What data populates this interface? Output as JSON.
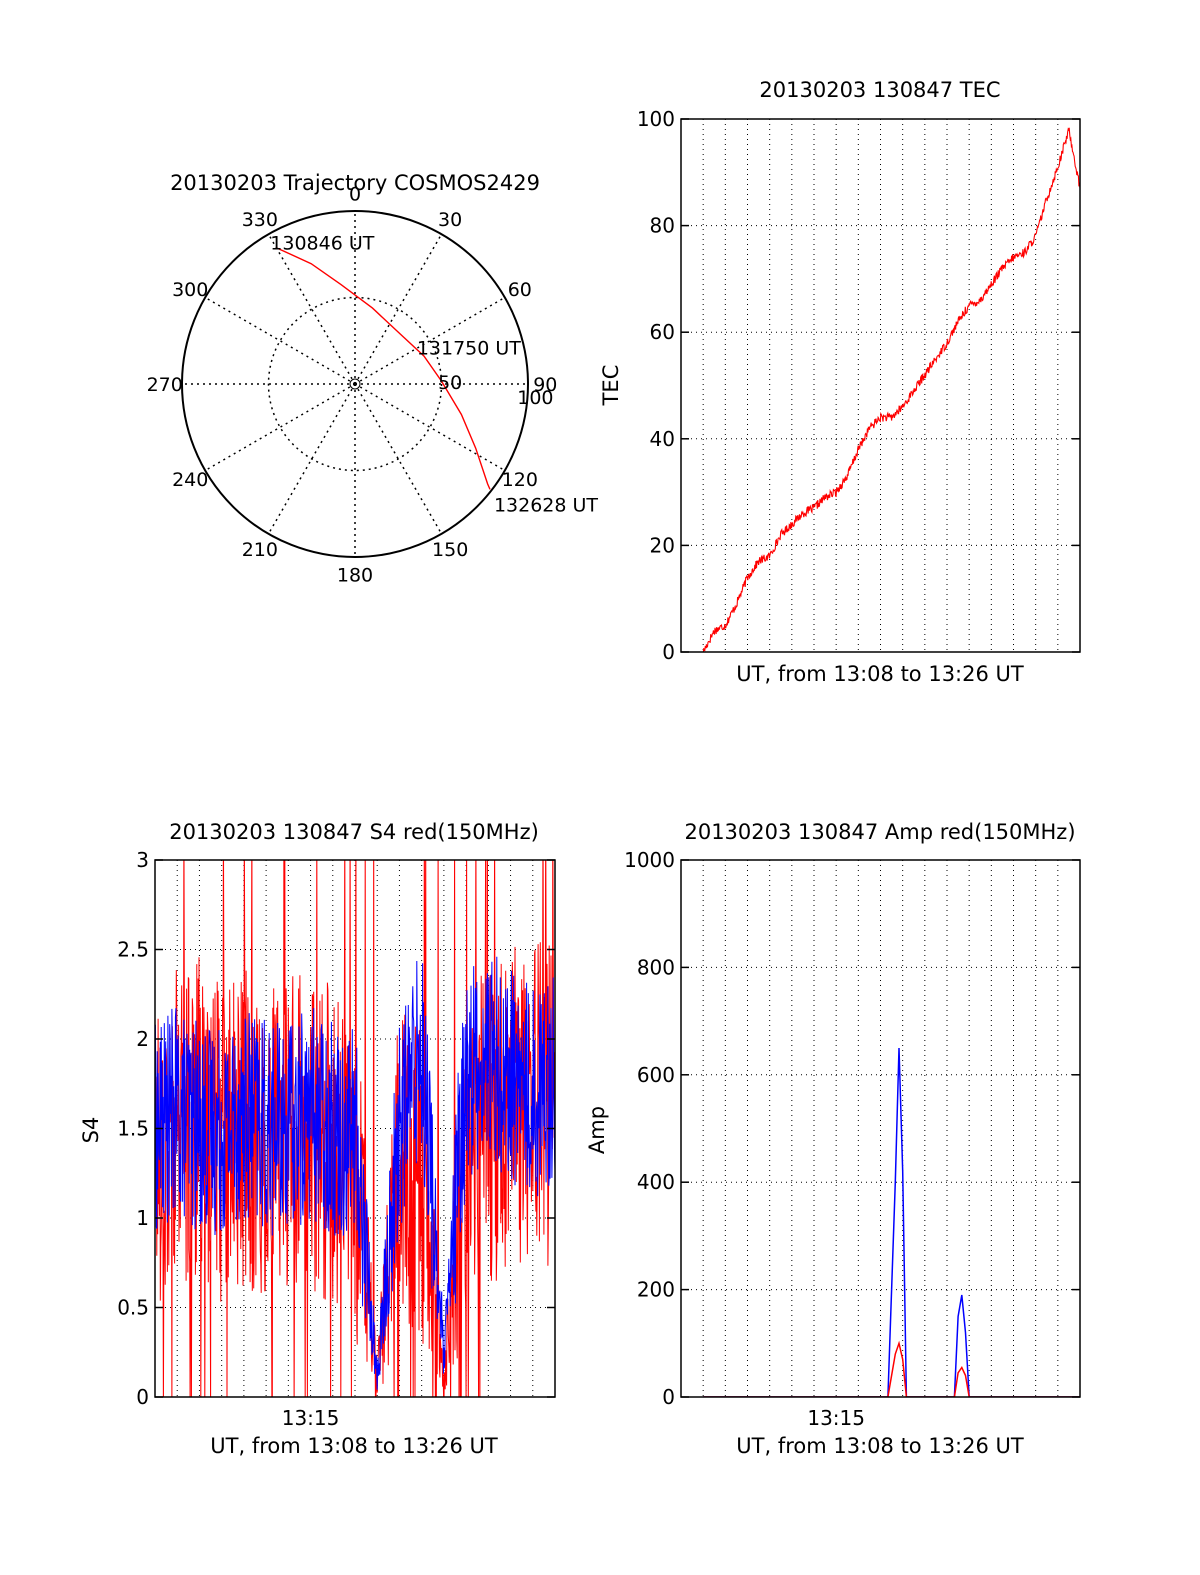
{
  "colors": {
    "red": "#ff0000",
    "blue": "#0000ff",
    "axis": "#000000",
    "grid": "#000000"
  },
  "chart_data": [
    {
      "id": "trajectory",
      "type": "polar",
      "title": "20130203 Trajectory COSMOS2429",
      "angle_labels": [
        "0",
        "30",
        "60",
        "90",
        "120",
        "150",
        "180",
        "210",
        "240",
        "270",
        "300",
        "330"
      ],
      "angles": [
        0,
        30,
        60,
        90,
        120,
        150,
        180,
        210,
        240,
        270,
        300,
        330
      ],
      "radial_labels": [
        "50",
        "100"
      ],
      "radial_values": [
        50,
        100
      ],
      "rmax": 100,
      "grid": true,
      "series": [
        {
          "color": "#ff0000",
          "points": [
            {
              "az": 330,
              "r": 91
            },
            {
              "az": 340,
              "r": 74
            },
            {
              "az": 352,
              "r": 58
            },
            {
              "az": 13,
              "r": 45
            },
            {
              "az": 42,
              "r": 39
            },
            {
              "az": 68,
              "r": 43
            },
            {
              "az": 88,
              "r": 50
            },
            {
              "az": 106,
              "r": 64
            },
            {
              "az": 118,
              "r": 79
            },
            {
              "az": 127,
              "r": 96
            },
            {
              "az": 128,
              "r": 99
            }
          ]
        }
      ],
      "annotations": [
        {
          "text": "130846 UT",
          "az": 330,
          "r": 91
        },
        {
          "text": "131750 UT",
          "az": 72,
          "r": 40
        },
        {
          "text": "132628 UT",
          "az": 128,
          "r": 99
        }
      ]
    },
    {
      "id": "tec",
      "type": "line",
      "title": "20130203 130847 TEC",
      "xlabel": "UT, from 13:08 to 13:26 UT",
      "ylabel": "TEC",
      "xlim": [
        "13:08",
        "13:26"
      ],
      "ylim": [
        0,
        100
      ],
      "yticks": [
        "0",
        "20",
        "40",
        "60",
        "80",
        "100"
      ],
      "ytick_values": [
        0,
        20,
        40,
        60,
        80,
        100
      ],
      "grid": true,
      "series": [
        {
          "color": "#ff0000",
          "x": [
            "13:09",
            "13:09:30",
            "13:10",
            "13:10:30",
            "13:11",
            "13:11:30",
            "13:12",
            "13:12:30",
            "13:13",
            "13:13:30",
            "13:14",
            "13:14:30",
            "13:15",
            "13:15:30",
            "13:16",
            "13:16:30",
            "13:17",
            "13:17:30",
            "13:18",
            "13:18:30",
            "13:19",
            "13:19:30",
            "13:20",
            "13:20:30",
            "13:21",
            "13:21:30",
            "13:22",
            "13:22:30",
            "13:23",
            "13:23:30",
            "13:24",
            "13:24:30",
            "13:25",
            "13:25:30",
            "13:26"
          ],
          "y": [
            0,
            4,
            5,
            9,
            14,
            17,
            18,
            22,
            24,
            26,
            27,
            29,
            30,
            33,
            38,
            42,
            44,
            44,
            46,
            49,
            52,
            55,
            58,
            62,
            65,
            66,
            69,
            72,
            74,
            75,
            78,
            85,
            91,
            98,
            87
          ]
        }
      ]
    },
    {
      "id": "s4",
      "type": "line",
      "title": "20130203 130847 S4 red(150MHz)",
      "xlabel": "UT, from 13:08 to 13:26 UT",
      "ylabel": "S4",
      "xlim": [
        "13:08",
        "13:26"
      ],
      "xticks": [
        "13:15"
      ],
      "ylim": [
        0,
        3
      ],
      "yticks": [
        "0",
        "0.5",
        "1",
        "1.5",
        "2",
        "2.5",
        "3"
      ],
      "ytick_values": [
        0,
        0.5,
        1,
        1.5,
        2,
        2.5,
        3
      ],
      "grid": true,
      "series": [
        {
          "color": "#ff0000",
          "x": [
            "13:08",
            "13:09",
            "13:10",
            "13:11",
            "13:12",
            "13:13",
            "13:14",
            "13:15",
            "13:16",
            "13:17",
            "13:18",
            "13:19",
            "13:20",
            "13:21",
            "13:22",
            "13:23",
            "13:24",
            "13:25",
            "13:26"
          ],
          "y": [
            1.4,
            1.5,
            1.6,
            1.4,
            1.5,
            1.4,
            1.5,
            1.5,
            1.4,
            1.3,
            0.1,
            1.3,
            1.2,
            0.1,
            1.4,
            1.5,
            1.6,
            1.7,
            1.6
          ]
        },
        {
          "color": "#0000ff",
          "x": [
            "13:08",
            "13:09",
            "13:10",
            "13:11",
            "13:12",
            "13:13",
            "13:14",
            "13:15",
            "13:16",
            "13:17",
            "13:18",
            "13:19",
            "13:20",
            "13:21",
            "13:22",
            "13:23",
            "13:24",
            "13:25",
            "13:26"
          ],
          "y": [
            1.5,
            1.6,
            1.5,
            1.5,
            1.6,
            1.5,
            1.5,
            1.6,
            1.5,
            1.5,
            0.1,
            1.5,
            2.0,
            0.2,
            1.8,
            1.9,
            1.8,
            1.7,
            1.8
          ]
        }
      ]
    },
    {
      "id": "amp",
      "type": "line",
      "title": "20130203 130847 Amp red(150MHz)",
      "xlabel": "UT, from 13:08 to 13:26 UT",
      "ylabel": "Amp",
      "xlim": [
        "13:08",
        "13:26"
      ],
      "xticks": [
        "13:15"
      ],
      "ylim": [
        0,
        1000
      ],
      "yticks": [
        "0",
        "200",
        "400",
        "600",
        "800",
        "1000"
      ],
      "ytick_values": [
        0,
        200,
        400,
        600,
        800,
        1000
      ],
      "grid": true,
      "series": [
        {
          "color": "#0000ff",
          "x": [
            "13:09",
            "13:17:20",
            "13:17:40",
            "13:17:50",
            "13:18",
            "13:18:10",
            "13:20:20",
            "13:20:30",
            "13:20:40",
            "13:20:50",
            "13:21",
            "13:26"
          ],
          "y": [
            0,
            0,
            400,
            650,
            420,
            0,
            0,
            150,
            190,
            120,
            0,
            0
          ]
        },
        {
          "color": "#ff0000",
          "x": [
            "13:09",
            "13:17:20",
            "13:17:40",
            "13:17:50",
            "13:18",
            "13:18:10",
            "13:20:20",
            "13:20:30",
            "13:20:40",
            "13:20:50",
            "13:21",
            "13:26"
          ],
          "y": [
            0,
            0,
            80,
            100,
            70,
            0,
            0,
            45,
            55,
            40,
            0,
            0
          ]
        }
      ]
    }
  ]
}
